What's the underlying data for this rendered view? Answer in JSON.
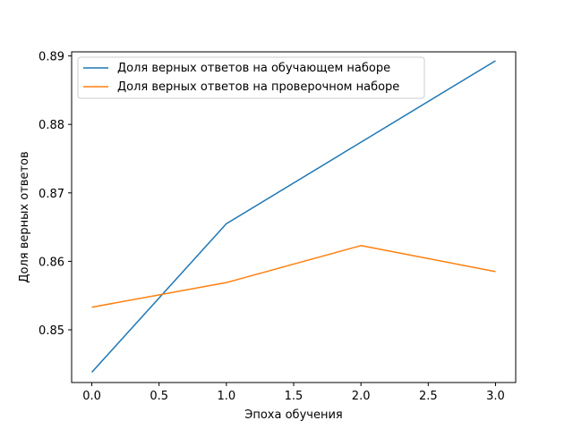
{
  "chart_data": {
    "type": "line",
    "title": "",
    "xlabel": "Эпоха обучения",
    "ylabel": "Доля верных ответов",
    "xlim": [
      -0.15,
      3.15
    ],
    "ylim": [
      0.8423,
      0.8906
    ],
    "x_ticks": [
      0.0,
      0.5,
      1.0,
      1.5,
      2.0,
      2.5,
      3.0
    ],
    "x_tick_labels": [
      "0.0",
      "0.5",
      "1.0",
      "1.5",
      "2.0",
      "2.5",
      "3.0"
    ],
    "y_ticks": [
      0.85,
      0.86,
      0.87,
      0.88,
      0.89
    ],
    "y_tick_labels": [
      "0.85",
      "0.86",
      "0.87",
      "0.88",
      "0.89"
    ],
    "grid": false,
    "legend_position": "top-left",
    "x": [
      0,
      1,
      2,
      3
    ],
    "series": [
      {
        "name": "Доля верных ответов на обучающем наборе",
        "color": "#1f77b4",
        "values": [
          0.8438,
          0.8655,
          0.8774,
          0.8893
        ]
      },
      {
        "name": "Доля верных ответов на проверочном наборе",
        "color": "#ff7f0e",
        "values": [
          0.8533,
          0.8569,
          0.8623,
          0.8585
        ]
      }
    ]
  }
}
